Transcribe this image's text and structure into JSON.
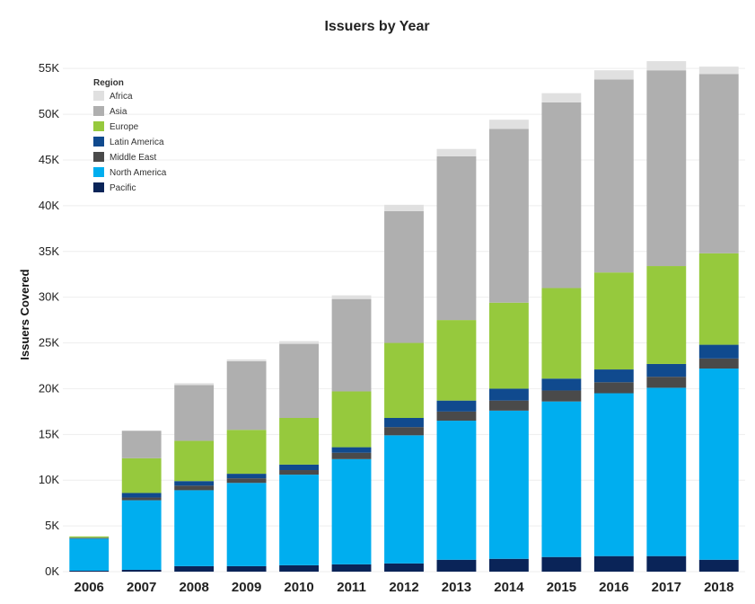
{
  "chart_data": {
    "type": "bar",
    "stacked": true,
    "title": "Issuers by Year",
    "xlabel": "",
    "ylabel": "Issuers Covered",
    "ylim": [
      0,
      56000
    ],
    "yticks": [
      0,
      5000,
      10000,
      15000,
      20000,
      25000,
      30000,
      35000,
      40000,
      45000,
      50000,
      55000
    ],
    "ytick_labels": [
      "0K",
      "5K",
      "10K",
      "15K",
      "20K",
      "25K",
      "30K",
      "35K",
      "40K",
      "45K",
      "50K",
      "55K"
    ],
    "grid": true,
    "legend_title": "Region",
    "legend_position": "top-left",
    "categories": [
      "2006",
      "2007",
      "2008",
      "2009",
      "2010",
      "2011",
      "2012",
      "2013",
      "2014",
      "2015",
      "2016",
      "2017",
      "2018"
    ],
    "series": [
      {
        "name": "Pacific",
        "color": "#0a2458",
        "values": [
          100,
          200,
          600,
          600,
          700,
          800,
          900,
          1300,
          1400,
          1600,
          1700,
          1700,
          1300
        ]
      },
      {
        "name": "North America",
        "color": "#00aeef",
        "values": [
          3500,
          7600,
          8300,
          9100,
          9900,
          11500,
          14000,
          15200,
          16200,
          17000,
          17800,
          18400,
          20900
        ]
      },
      {
        "name": "Middle East",
        "color": "#4a4a4a",
        "values": [
          50,
          300,
          500,
          500,
          500,
          700,
          900,
          1000,
          1100,
          1200,
          1200,
          1200,
          1100
        ]
      },
      {
        "name": "Latin America",
        "color": "#104a8e",
        "values": [
          50,
          500,
          500,
          500,
          600,
          600,
          1000,
          1200,
          1300,
          1300,
          1400,
          1400,
          1500
        ]
      },
      {
        "name": "Europe",
        "color": "#96c93d",
        "values": [
          150,
          3800,
          4400,
          4800,
          5100,
          6100,
          8200,
          8800,
          9400,
          9900,
          10600,
          10700,
          10000
        ]
      },
      {
        "name": "Asia",
        "color": "#afafaf",
        "values": [
          0,
          3000,
          6100,
          7500,
          8100,
          10100,
          14400,
          17900,
          19000,
          20300,
          21100,
          21400,
          19600
        ]
      },
      {
        "name": "Africa",
        "color": "#e0e0e0",
        "values": [
          0,
          0,
          200,
          200,
          300,
          400,
          700,
          800,
          1000,
          1000,
          1000,
          1000,
          800
        ]
      }
    ],
    "legend_order": [
      "Africa",
      "Asia",
      "Europe",
      "Latin America",
      "Middle East",
      "North America",
      "Pacific"
    ]
  }
}
